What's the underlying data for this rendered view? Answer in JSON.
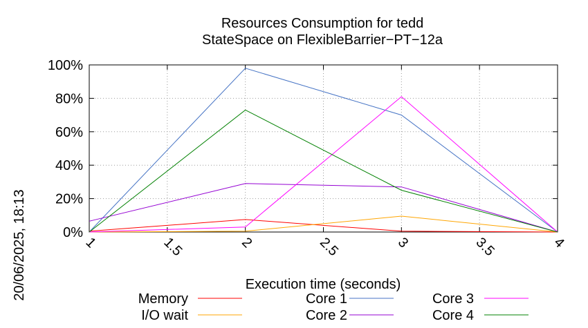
{
  "chart_data": {
    "type": "line",
    "title": "Resources Consumption for tedd",
    "subtitle": "StateSpace on FlexibleBarrier−PT−12a",
    "xlabel": "Execution time (seconds)",
    "ylabel": "",
    "side_label": "20/06/2025, 18:13",
    "xlim": [
      1,
      4
    ],
    "ylim": [
      0,
      100
    ],
    "x_ticks": [
      {
        "value": 1,
        "label": "1"
      },
      {
        "value": 1.5,
        "label": "1.5"
      },
      {
        "value": 2,
        "label": "2"
      },
      {
        "value": 2.5,
        "label": "2.5"
      },
      {
        "value": 3,
        "label": "3"
      },
      {
        "value": 3.5,
        "label": "3.5"
      },
      {
        "value": 4,
        "label": "4"
      }
    ],
    "y_ticks": [
      {
        "value": 0,
        "label": "0%"
      },
      {
        "value": 20,
        "label": "20%"
      },
      {
        "value": 40,
        "label": "40%"
      },
      {
        "value": 60,
        "label": "60%"
      },
      {
        "value": 80,
        "label": "80%"
      },
      {
        "value": 100,
        "label": "100%"
      }
    ],
    "grid": true,
    "legend_position": "bottom",
    "x": [
      1,
      2,
      3,
      4
    ],
    "series": [
      {
        "name": "Memory",
        "color": "#ff0000",
        "values": [
          0.5,
          7.5,
          0.5,
          0
        ]
      },
      {
        "name": "I/O wait",
        "color": "#ffa500",
        "values": [
          0,
          0.5,
          9.5,
          0
        ]
      },
      {
        "name": "Core 1",
        "color": "#4472c4",
        "values": [
          0,
          98,
          70,
          0
        ]
      },
      {
        "name": "Core 2",
        "color": "#9400d3",
        "values": [
          6.5,
          29,
          27,
          0
        ]
      },
      {
        "name": "Core 3",
        "color": "#ff00ff",
        "values": [
          0,
          3,
          81,
          0
        ]
      },
      {
        "name": "Core 4",
        "color": "#008000",
        "values": [
          0,
          73,
          25,
          0
        ]
      }
    ]
  }
}
